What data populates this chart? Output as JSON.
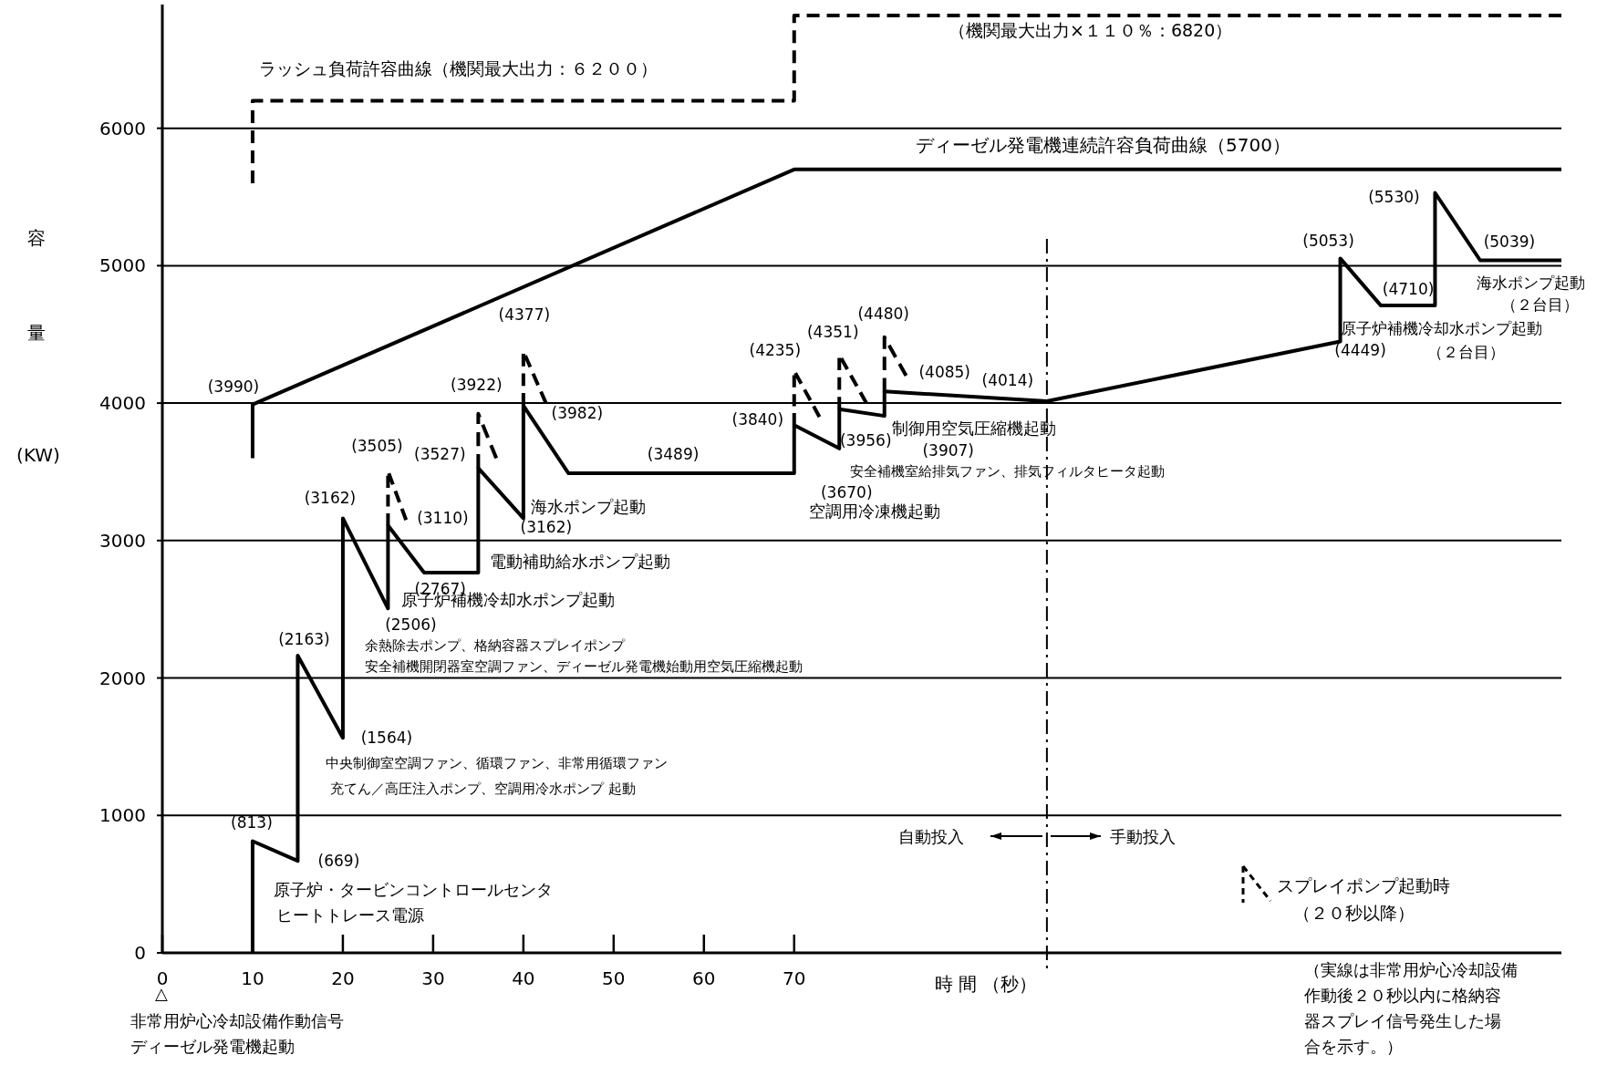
{
  "chart_data": {
    "type": "line",
    "xlabel": "時 間 （秒）",
    "ylabel": "容量(KW)",
    "xlim": [
      0,
      155
    ],
    "xticks": [
      0,
      10,
      20,
      30,
      40,
      50,
      60,
      70
    ],
    "ylim": [
      0,
      6900
    ],
    "yticks": [
      0,
      1000,
      2000,
      3000,
      4000,
      5000,
      6000
    ],
    "grid": "y",
    "legend": "bottom right",
    "series": [
      {
        "color": "#000000",
        "line_style": "solid",
        "x": [
          10,
          10,
          15,
          15,
          20,
          20,
          25,
          25,
          29,
          35,
          35,
          40,
          40,
          45,
          70,
          70,
          75,
          75,
          80,
          80,
          98,
          130.5,
          130.5,
          135,
          141,
          141,
          146,
          155
        ],
        "values": [
          0,
          813,
          669,
          2163,
          1564,
          3162,
          2506,
          3110,
          2767,
          2767,
          3527,
          3162,
          3982,
          3489,
          3489,
          3840,
          3670,
          3956,
          3907,
          4085,
          4014,
          4449,
          5053,
          4710,
          4710,
          5530,
          5039,
          5039
        ]
      },
      {
        "name": "スプレイポンプ起動時（２０秒以降）",
        "color": "#000000",
        "line_style": "dashed",
        "x": [
          25,
          25,
          27
        ],
        "values": [
          3110,
          3505,
          3150
        ]
      },
      {
        "color": "#000000",
        "line_style": "dashed",
        "x": [
          35,
          35,
          37
        ],
        "values": [
          3527,
          3922,
          3600
        ]
      },
      {
        "color": "#000000",
        "line_style": "dashed",
        "x": [
          40,
          40,
          42.5
        ],
        "values": [
          3982,
          4377,
          4000
        ]
      },
      {
        "color": "#000000",
        "line_style": "dashed",
        "x": [
          70,
          70,
          72.8
        ],
        "values": [
          3840,
          4235,
          3900
        ]
      },
      {
        "color": "#000000",
        "line_style": "dashed",
        "x": [
          75,
          75,
          78
        ],
        "values": [
          3956,
          4351,
          4000
        ]
      },
      {
        "color": "#000000",
        "line_style": "dashed",
        "x": [
          80,
          80,
          82.4
        ],
        "values": [
          4085,
          4480,
          4200
        ]
      },
      {
        "color": "#000000",
        "line_style": "solid",
        "x": [
          10,
          10,
          70,
          155
        ],
        "values": [
          3600,
          3990,
          5700,
          5700
        ]
      },
      {
        "color": "#000000",
        "line_style": "dashed",
        "x": [
          10,
          10,
          70,
          70,
          155
        ],
        "values": [
          5600,
          6200,
          6200,
          6820,
          6820
        ]
      }
    ],
    "ref_lines": [
      {
        "axis": "x",
        "value": 98,
        "line_style": "dashed",
        "color": "#000000"
      }
    ],
    "annotations": [
      {
        "text": "(3990)",
        "x": 10,
        "y": 3990
      },
      {
        "text": "(813)",
        "x": 10,
        "y": 813
      },
      {
        "text": "(669)",
        "x": 15,
        "y": 669
      },
      {
        "text": "(2163)",
        "x": 15,
        "y": 2163
      },
      {
        "text": "(1564)",
        "x": 20,
        "y": 1564
      },
      {
        "text": "(3162)",
        "x": 20,
        "y": 3162
      },
      {
        "text": "(2506)",
        "x": 25,
        "y": 2506
      },
      {
        "text": "(3505)",
        "x": 25,
        "y": 3505
      },
      {
        "text": "(3110)",
        "x": 25,
        "y": 3110
      },
      {
        "text": "(2767)",
        "x": 32,
        "y": 2767
      },
      {
        "text": "(3527)",
        "x": 35,
        "y": 3527
      },
      {
        "text": "(3922)",
        "x": 35,
        "y": 3922
      },
      {
        "text": "(3162)",
        "x": 40,
        "y": 3162
      },
      {
        "text": "(4377)",
        "x": 40,
        "y": 4377
      },
      {
        "text": "(3982)",
        "x": 40,
        "y": 3982
      },
      {
        "text": "(3489)",
        "x": 57,
        "y": 3489
      },
      {
        "text": "(3840)",
        "x": 70,
        "y": 3840
      },
      {
        "text": "(4235)",
        "x": 70,
        "y": 4235
      },
      {
        "text": "(3670)",
        "x": 75,
        "y": 3670
      },
      {
        "text": "(3956)",
        "x": 75,
        "y": 3956
      },
      {
        "text": "(4351)",
        "x": 75,
        "y": 4351
      },
      {
        "text": "(3907)",
        "x": 80,
        "y": 3907
      },
      {
        "text": "(4480)",
        "x": 80,
        "y": 4480
      },
      {
        "text": "(4085)",
        "x": 80,
        "y": 4085
      },
      {
        "text": "(4014)",
        "x": 98,
        "y": 4014
      },
      {
        "text": "(4449)",
        "x": 130.5,
        "y": 4449
      },
      {
        "text": "(5053)",
        "x": 130.5,
        "y": 5053
      },
      {
        "text": "(4710)",
        "x": 135,
        "y": 4710
      },
      {
        "text": "(5530)",
        "x": 141,
        "y": 5530
      },
      {
        "text": "(5039)",
        "x": 146,
        "y": 5039
      },
      "ラッシュ負荷許容曲線（機関最大出力：６２００）",
      "（機関最大出力×１１０％：6820）",
      "ディーゼル発電機連続許容負荷曲線（5700）",
      "原子炉・タービンコントロールセンタヒートトレース電源",
      "中央制御室空調ファン、循環ファン、非常用循環ファン充てん／高圧注入ポンプ、空調用冷水ポンプ 起動",
      "余熱除去ポンプ、格納容器スプレイポンプ安全補機開閉器室空調ファン、ディーゼル発電機始動用空気圧縮機起動",
      "原子炉補機冷却水ポンプ起動",
      "電動補助給水ポンプ起動",
      "海水ポンプ起動",
      "空調用冷凍機起動",
      "制御用空気圧縮機起動",
      "安全補機室給排気ファン、排気フィルタヒータ起動",
      "原子炉補機冷却水ポンプ起動（２台目）",
      "海水ポンプ起動（２台目）",
      "自動投入",
      "手動投入",
      "△非常用炉心冷却設備作動信号ディーゼル発電機起動",
      "（実線は非常用炉心冷却設備作動後２０秒以内に格納容器スプレイ信号発生した場合を示す。）"
    ]
  }
}
